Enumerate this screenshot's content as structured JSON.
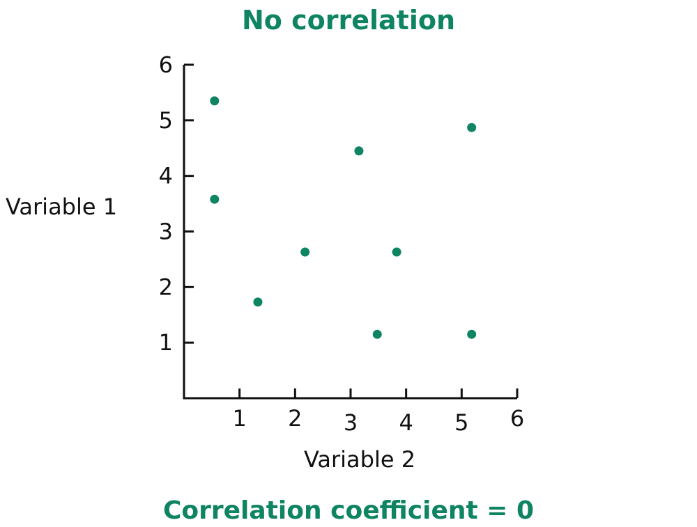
{
  "chart_data": {
    "type": "scatter",
    "title": "No correlation",
    "xlabel": "Variable 2",
    "ylabel": "Variable 1",
    "footer": "Correlation coefficient = 0",
    "xlim": [
      0,
      6
    ],
    "ylim": [
      0,
      6
    ],
    "xticks": [
      "1",
      "2",
      "3",
      "4",
      "5",
      "6"
    ],
    "yticks": [
      "1",
      "2",
      "3",
      "4",
      "5",
      "6"
    ],
    "grid": false,
    "points": [
      {
        "x": 0.55,
        "y": 5.35
      },
      {
        "x": 0.55,
        "y": 3.58
      },
      {
        "x": 1.33,
        "y": 1.73
      },
      {
        "x": 2.18,
        "y": 2.63
      },
      {
        "x": 3.15,
        "y": 4.45
      },
      {
        "x": 3.48,
        "y": 1.15
      },
      {
        "x": 3.83,
        "y": 2.63
      },
      {
        "x": 5.18,
        "y": 4.87
      },
      {
        "x": 5.18,
        "y": 1.15
      }
    ],
    "colors": {
      "accent": "#0e8462",
      "axis": "#111111"
    }
  }
}
